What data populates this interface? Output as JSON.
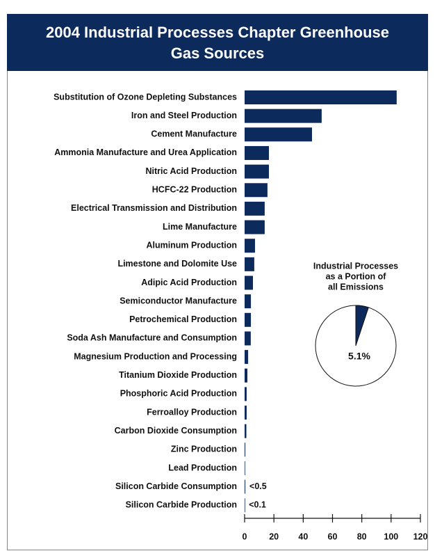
{
  "chart_data": [
    {
      "type": "barh",
      "title": [
        "2004 Industrial Processes Chapter Greenhouse",
        "Gas Sources"
      ],
      "categories": [
        "Substitution of Ozone Depleting Substances",
        "Iron and Steel Production",
        "Cement Manufacture",
        "Ammonia Manufacture and Urea Application",
        "Nitric Acid Production",
        "HCFC-22 Production",
        "Electrical Transmission and Distribution",
        "Lime Manufacture",
        "Aluminum Production",
        "Limestone and Dolomite Use",
        "Adipic Acid Production",
        "Semiconductor Manufacture",
        "Petrochemical Production",
        "Soda Ash Manufacture and Consumption",
        "Magnesium Production and Processing",
        "Titanium Dioxide Production",
        "Phosphoric Acid Production",
        "Ferroalloy Production",
        "Carbon Dioxide Consumption",
        "Zinc Production",
        "Lead Production",
        "Silicon Carbide Consumption",
        "Silicon Carbide Production"
      ],
      "values": [
        103.8,
        52.6,
        46,
        16.6,
        16.6,
        15.6,
        13.7,
        13.7,
        7.1,
        6.6,
        5.7,
        4.3,
        4.3,
        4.2,
        2.4,
        1.9,
        1.4,
        1.4,
        1.2,
        0.5,
        0.3,
        0.5,
        0.1
      ],
      "value_labels": [
        null,
        null,
        null,
        null,
        null,
        null,
        null,
        null,
        null,
        null,
        null,
        null,
        null,
        null,
        null,
        null,
        null,
        null,
        null,
        null,
        null,
        "<0.5",
        "<0.1"
      ],
      "color": "#0d2a5c",
      "xlim": [
        0,
        120
      ],
      "xticks": [
        0,
        20,
        40,
        60,
        80,
        100,
        120
      ]
    },
    {
      "type": "pie",
      "title": [
        "Industrial Processes",
        "as a Portion of",
        "all Emissions"
      ],
      "values": [
        5.1
      ],
      "value_labels": [
        "5.1%"
      ],
      "color": "#0d2a5c"
    }
  ]
}
